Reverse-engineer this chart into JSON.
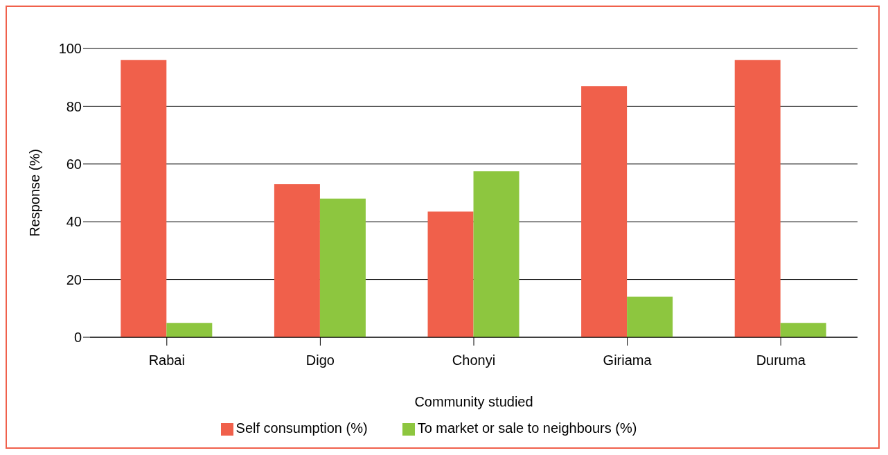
{
  "chart_data": {
    "type": "bar",
    "xlabel": "Community studied",
    "ylabel": "Response (%)",
    "categories": [
      "Rabai",
      "Digo",
      "Chonyi",
      "Giriama",
      "Duruma"
    ],
    "series": [
      {
        "name": "Self consumption (%)",
        "color": "#f0604b",
        "values": [
          96,
          53,
          43.5,
          87,
          96
        ]
      },
      {
        "name": "To market or sale to neighbours (%)",
        "color": "#8dc63f",
        "values": [
          5,
          48,
          57.5,
          14,
          5
        ]
      }
    ],
    "ylim": [
      0,
      100
    ],
    "yticks": [
      0,
      20,
      40,
      60,
      80,
      100
    ],
    "grid": "y",
    "legend": "bottom"
  }
}
